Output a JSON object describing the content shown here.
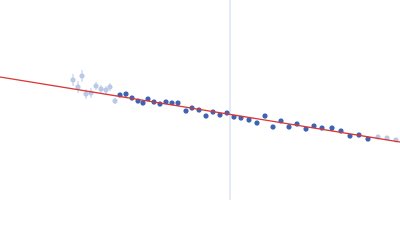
{
  "chart_data": {
    "type": "scatter",
    "xlim": [
      0,
      400
    ],
    "ylim": [
      0,
      200
    ],
    "vline": {
      "x": 230,
      "color": "#c9d5ec"
    },
    "fit": {
      "color": "#d93636",
      "x": [
        0,
        400
      ],
      "values": [
        123,
        58
      ]
    },
    "series": [
      {
        "color": "#b9c9e7",
        "x": [
          73,
          78,
          82,
          86,
          91,
          96,
          101,
          106,
          110,
          115,
          378,
          387,
          396
        ],
        "values": [
          120,
          113,
          124,
          106,
          107,
          114,
          111,
          110,
          113,
          99,
          63,
          62,
          60
        ],
        "errors": [
          6,
          6,
          6,
          5,
          5,
          4,
          4,
          4,
          4,
          3,
          2,
          2,
          2
        ]
      },
      {
        "color": "#3d63b3",
        "x": [
          120,
          126,
          132,
          138,
          143,
          148,
          154,
          160,
          166,
          172,
          178,
          186,
          192,
          199,
          206,
          213,
          220,
          227,
          234,
          241,
          249,
          257,
          265,
          273,
          281,
          289,
          297,
          306,
          314,
          322,
          332,
          341,
          350,
          359,
          368
        ],
        "values": [
          105,
          106,
          102,
          99,
          97,
          101,
          98,
          96,
          98,
          97,
          97,
          89,
          92,
          90,
          84,
          88,
          85,
          87,
          83,
          82,
          80,
          77,
          84,
          73,
          79,
          73,
          76,
          71,
          74,
          72,
          72,
          69,
          64,
          65,
          61
        ]
      }
    ]
  }
}
